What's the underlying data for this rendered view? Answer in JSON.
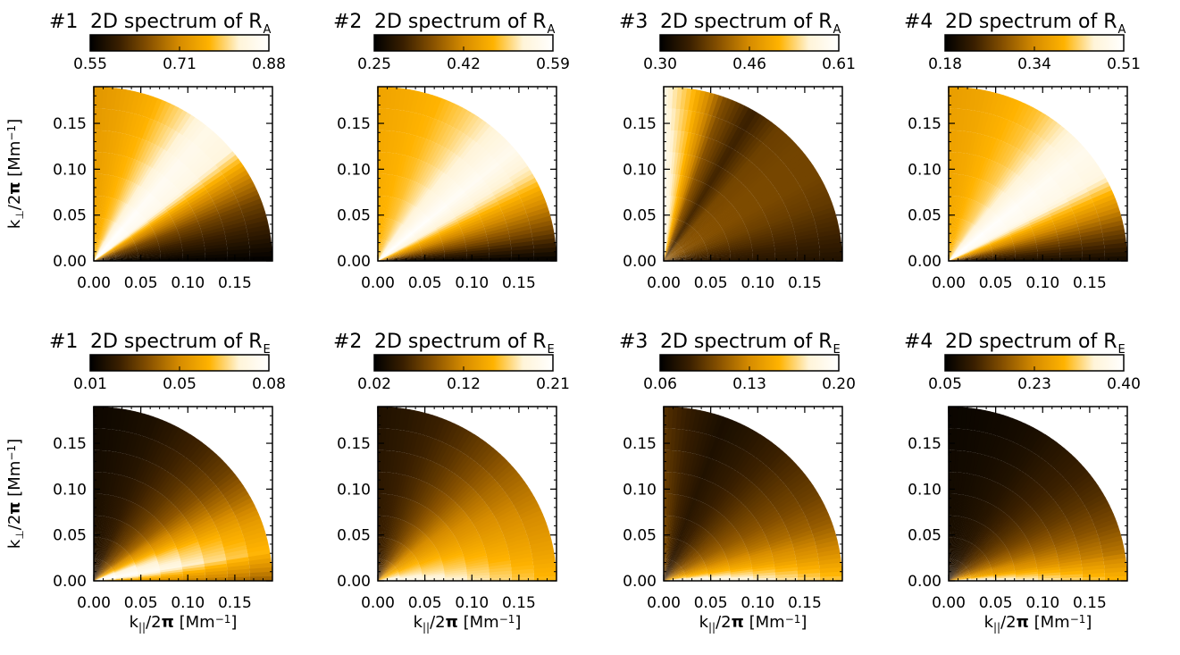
{
  "figure": {
    "colormap": [
      "#000000",
      "#3b2000",
      "#8a5300",
      "#d68c00",
      "#ffb300",
      "#fff4d8",
      "#ffffff"
    ],
    "x_label": {
      "main": "k",
      "sub": "||",
      "mid": "/2",
      "pi": "π",
      "unit": " [Mm",
      "exp": "−1",
      "close": "]"
    },
    "y_label": {
      "main": "k",
      "sub": "⊥",
      "mid": "/2",
      "pi": "π",
      "unit": " [Mm",
      "exp": "−1",
      "close": "]"
    }
  },
  "chart_data": [
    {
      "type": "heatmap",
      "panel": "#1",
      "quantity": "A",
      "title": "2D spectrum of R",
      "subscript": "A",
      "colorbar": {
        "min": 0.55,
        "max": 0.88,
        "ticks": [
          "0.55",
          "0.71",
          "0.88"
        ]
      },
      "xticks": [
        "0.00",
        "0.05",
        "0.10",
        "0.15"
      ],
      "yticks": [
        "0.00",
        "0.05",
        "0.10",
        "0.15"
      ],
      "xlim": [
        0,
        0.19
      ],
      "ylim": [
        0,
        0.19
      ],
      "kmax": 0.19,
      "angular_profile": [
        0.0,
        0.15,
        0.3,
        0.55,
        0.95,
        1.0,
        0.85,
        0.72,
        0.65,
        0.6
      ],
      "radial_weight": 0.1
    },
    {
      "type": "heatmap",
      "panel": "#2",
      "quantity": "A",
      "title": "2D spectrum of R",
      "subscript": "A",
      "colorbar": {
        "min": 0.25,
        "max": 0.59,
        "ticks": [
          "0.25",
          "0.42",
          "0.59"
        ]
      },
      "xticks": [
        "0.00",
        "0.05",
        "0.10",
        "0.15"
      ],
      "yticks": [
        "0.00",
        "0.05",
        "0.10",
        "0.15"
      ],
      "xlim": [
        0,
        0.19
      ],
      "ylim": [
        0,
        0.19
      ],
      "kmax": 0.19,
      "angular_profile": [
        0.0,
        0.3,
        0.55,
        0.85,
        1.0,
        0.9,
        0.8,
        0.72,
        0.68,
        0.65
      ],
      "radial_weight": 0.08
    },
    {
      "type": "heatmap",
      "panel": "#3",
      "quantity": "A",
      "title": "2D spectrum of R",
      "subscript": "A",
      "colorbar": {
        "min": 0.3,
        "max": 0.61,
        "ticks": [
          "0.30",
          "0.46",
          "0.61"
        ]
      },
      "xticks": [
        "0.00",
        "0.05",
        "0.10",
        "0.15"
      ],
      "yticks": [
        "0.00",
        "0.05",
        "0.10",
        "0.15"
      ],
      "xlim": [
        0,
        0.19
      ],
      "ylim": [
        0,
        0.19
      ],
      "kmax": 0.19,
      "angular_profile": [
        0.1,
        0.2,
        0.28,
        0.32,
        0.32,
        0.3,
        0.18,
        0.35,
        0.75,
        0.98
      ],
      "radial_weight": 0.12
    },
    {
      "type": "heatmap",
      "panel": "#4",
      "quantity": "A",
      "title": "2D spectrum of R",
      "subscript": "A",
      "colorbar": {
        "min": 0.18,
        "max": 0.51,
        "ticks": [
          "0.18",
          "0.34",
          "0.51"
        ]
      },
      "xticks": [
        "0.00",
        "0.05",
        "0.10",
        "0.15"
      ],
      "yticks": [
        "0.00",
        "0.05",
        "0.10",
        "0.15"
      ],
      "xlim": [
        0,
        0.19
      ],
      "ylim": [
        0,
        0.19
      ],
      "kmax": 0.19,
      "angular_profile": [
        0.05,
        0.3,
        0.6,
        0.95,
        1.0,
        0.88,
        0.76,
        0.7,
        0.65,
        0.62
      ],
      "radial_weight": 0.08
    },
    {
      "type": "heatmap",
      "panel": "#1",
      "quantity": "E",
      "title": "2D spectrum of R",
      "subscript": "E",
      "colorbar": {
        "min": 0.01,
        "max": 0.08,
        "ticks": [
          "0.01",
          "0.05",
          "0.08"
        ]
      },
      "xticks": [
        "0.00",
        "0.05",
        "0.10",
        "0.15"
      ],
      "yticks": [
        "0.00",
        "0.05",
        "0.10",
        "0.15"
      ],
      "xlim": [
        0,
        0.19
      ],
      "ylim": [
        0,
        0.19
      ],
      "kmax": 0.19,
      "angular_profile": [
        0.55,
        1.0,
        0.85,
        0.6,
        0.4,
        0.28,
        0.2,
        0.12,
        0.08,
        0.05
      ],
      "radial_weight": 0.35
    },
    {
      "type": "heatmap",
      "panel": "#2",
      "quantity": "E",
      "title": "2D spectrum of R",
      "subscript": "E",
      "colorbar": {
        "min": 0.02,
        "max": 0.21,
        "ticks": [
          "0.02",
          "0.12",
          "0.21"
        ]
      },
      "xticks": [
        "0.00",
        "0.05",
        "0.10",
        "0.15"
      ],
      "yticks": [
        "0.00",
        "0.05",
        "0.10",
        "0.15"
      ],
      "xlim": [
        0,
        0.19
      ],
      "ylim": [
        0,
        0.19
      ],
      "kmax": 0.19,
      "angular_profile": [
        0.95,
        0.82,
        0.72,
        0.62,
        0.52,
        0.4,
        0.3,
        0.22,
        0.16,
        0.12
      ],
      "radial_weight": 0.3
    },
    {
      "type": "heatmap",
      "panel": "#3",
      "quantity": "E",
      "title": "2D spectrum of R",
      "subscript": "E",
      "colorbar": {
        "min": 0.06,
        "max": 0.2,
        "ticks": [
          "0.06",
          "0.13",
          "0.20"
        ]
      },
      "xticks": [
        "0.00",
        "0.05",
        "0.10",
        "0.15"
      ],
      "yticks": [
        "0.00",
        "0.05",
        "0.10",
        "0.15"
      ],
      "xlim": [
        0,
        0.19
      ],
      "ylim": [
        0,
        0.19
      ],
      "kmax": 0.19,
      "angular_profile": [
        1.0,
        0.7,
        0.5,
        0.38,
        0.3,
        0.22,
        0.15,
        0.1,
        0.18,
        0.3
      ],
      "radial_weight": 0.3
    },
    {
      "type": "heatmap",
      "panel": "#4",
      "quantity": "E",
      "title": "2D spectrum of R",
      "subscript": "E",
      "colorbar": {
        "min": 0.05,
        "max": 0.4,
        "ticks": [
          "0.05",
          "0.23",
          "0.40"
        ]
      },
      "xticks": [
        "0.00",
        "0.05",
        "0.10",
        "0.15"
      ],
      "yticks": [
        "0.00",
        "0.05",
        "0.10",
        "0.15"
      ],
      "xlim": [
        0,
        0.19
      ],
      "ylim": [
        0,
        0.19
      ],
      "kmax": 0.19,
      "angular_profile": [
        0.95,
        0.6,
        0.42,
        0.3,
        0.22,
        0.16,
        0.1,
        0.07,
        0.05,
        0.04
      ],
      "radial_weight": 0.3
    }
  ]
}
